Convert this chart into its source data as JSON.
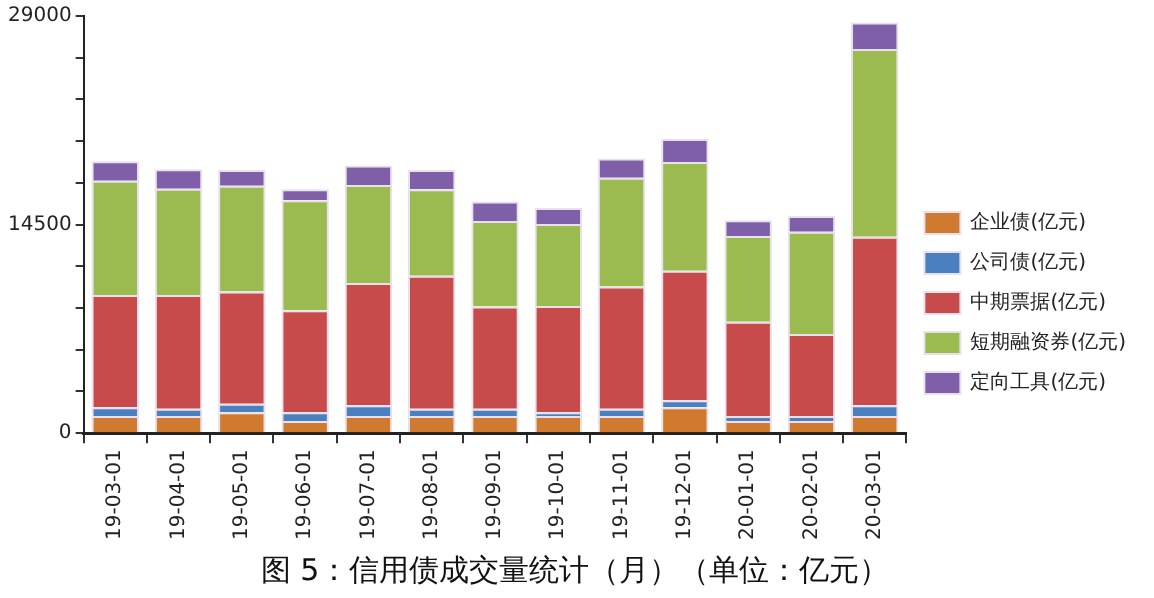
{
  "chart_data": {
    "type": "bar",
    "title": "图 5：信用债成交量统计（月）（单位：亿元）",
    "stacked": true,
    "legend": "right",
    "grid": false,
    "categories": [
      "19-03-01",
      "19-04-01",
      "19-05-01",
      "19-06-01",
      "19-07-01",
      "19-08-01",
      "19-09-01",
      "19-10-01",
      "19-11-01",
      "19-12-01",
      "20-01-01",
      "20-02-01",
      "20-03-01"
    ],
    "ylim": [
      0,
      29000
    ],
    "yticks": [
      0,
      {
        "value": 2900,
        "label": null
      },
      {
        "value": 5800,
        "label": null
      },
      {
        "value": 8700,
        "label": null
      },
      {
        "value": 11600,
        "label": null
      },
      14500,
      {
        "value": 17400,
        "label": null
      },
      {
        "value": 20300,
        "label": null
      },
      {
        "value": 23200,
        "label": null
      },
      {
        "value": 26100,
        "label": null
      },
      29000
    ],
    "series": [
      {
        "name": "企业债(亿元)",
        "color": "#d07a30",
        "values": [
          1200,
          1200,
          1450,
          850,
          1200,
          1200,
          1200,
          1200,
          1200,
          1800,
          850,
          850,
          1200
        ]
      },
      {
        "name": "公司债(亿元)",
        "color": "#4a7fc0",
        "values": [
          600,
          500,
          600,
          600,
          750,
          500,
          500,
          250,
          500,
          500,
          350,
          350,
          750
        ]
      },
      {
        "name": "中期票据(亿元)",
        "color": "#c84b4b",
        "values": [
          7800,
          7900,
          7800,
          7100,
          8500,
          9250,
          7100,
          7400,
          8500,
          9000,
          6550,
          5700,
          11700
        ]
      },
      {
        "name": "短期融资券(亿元)",
        "color": "#9bbb50",
        "values": [
          7950,
          7400,
          7350,
          7650,
          6800,
          6000,
          5950,
          5700,
          7550,
          7550,
          5950,
          7100,
          13050
        ]
      },
      {
        "name": "定向工具(亿元)",
        "color": "#7f60a8",
        "values": [
          1350,
          1350,
          1100,
          750,
          1350,
          1350,
          1350,
          1100,
          1350,
          1600,
          1100,
          1100,
          1850
        ]
      }
    ]
  }
}
